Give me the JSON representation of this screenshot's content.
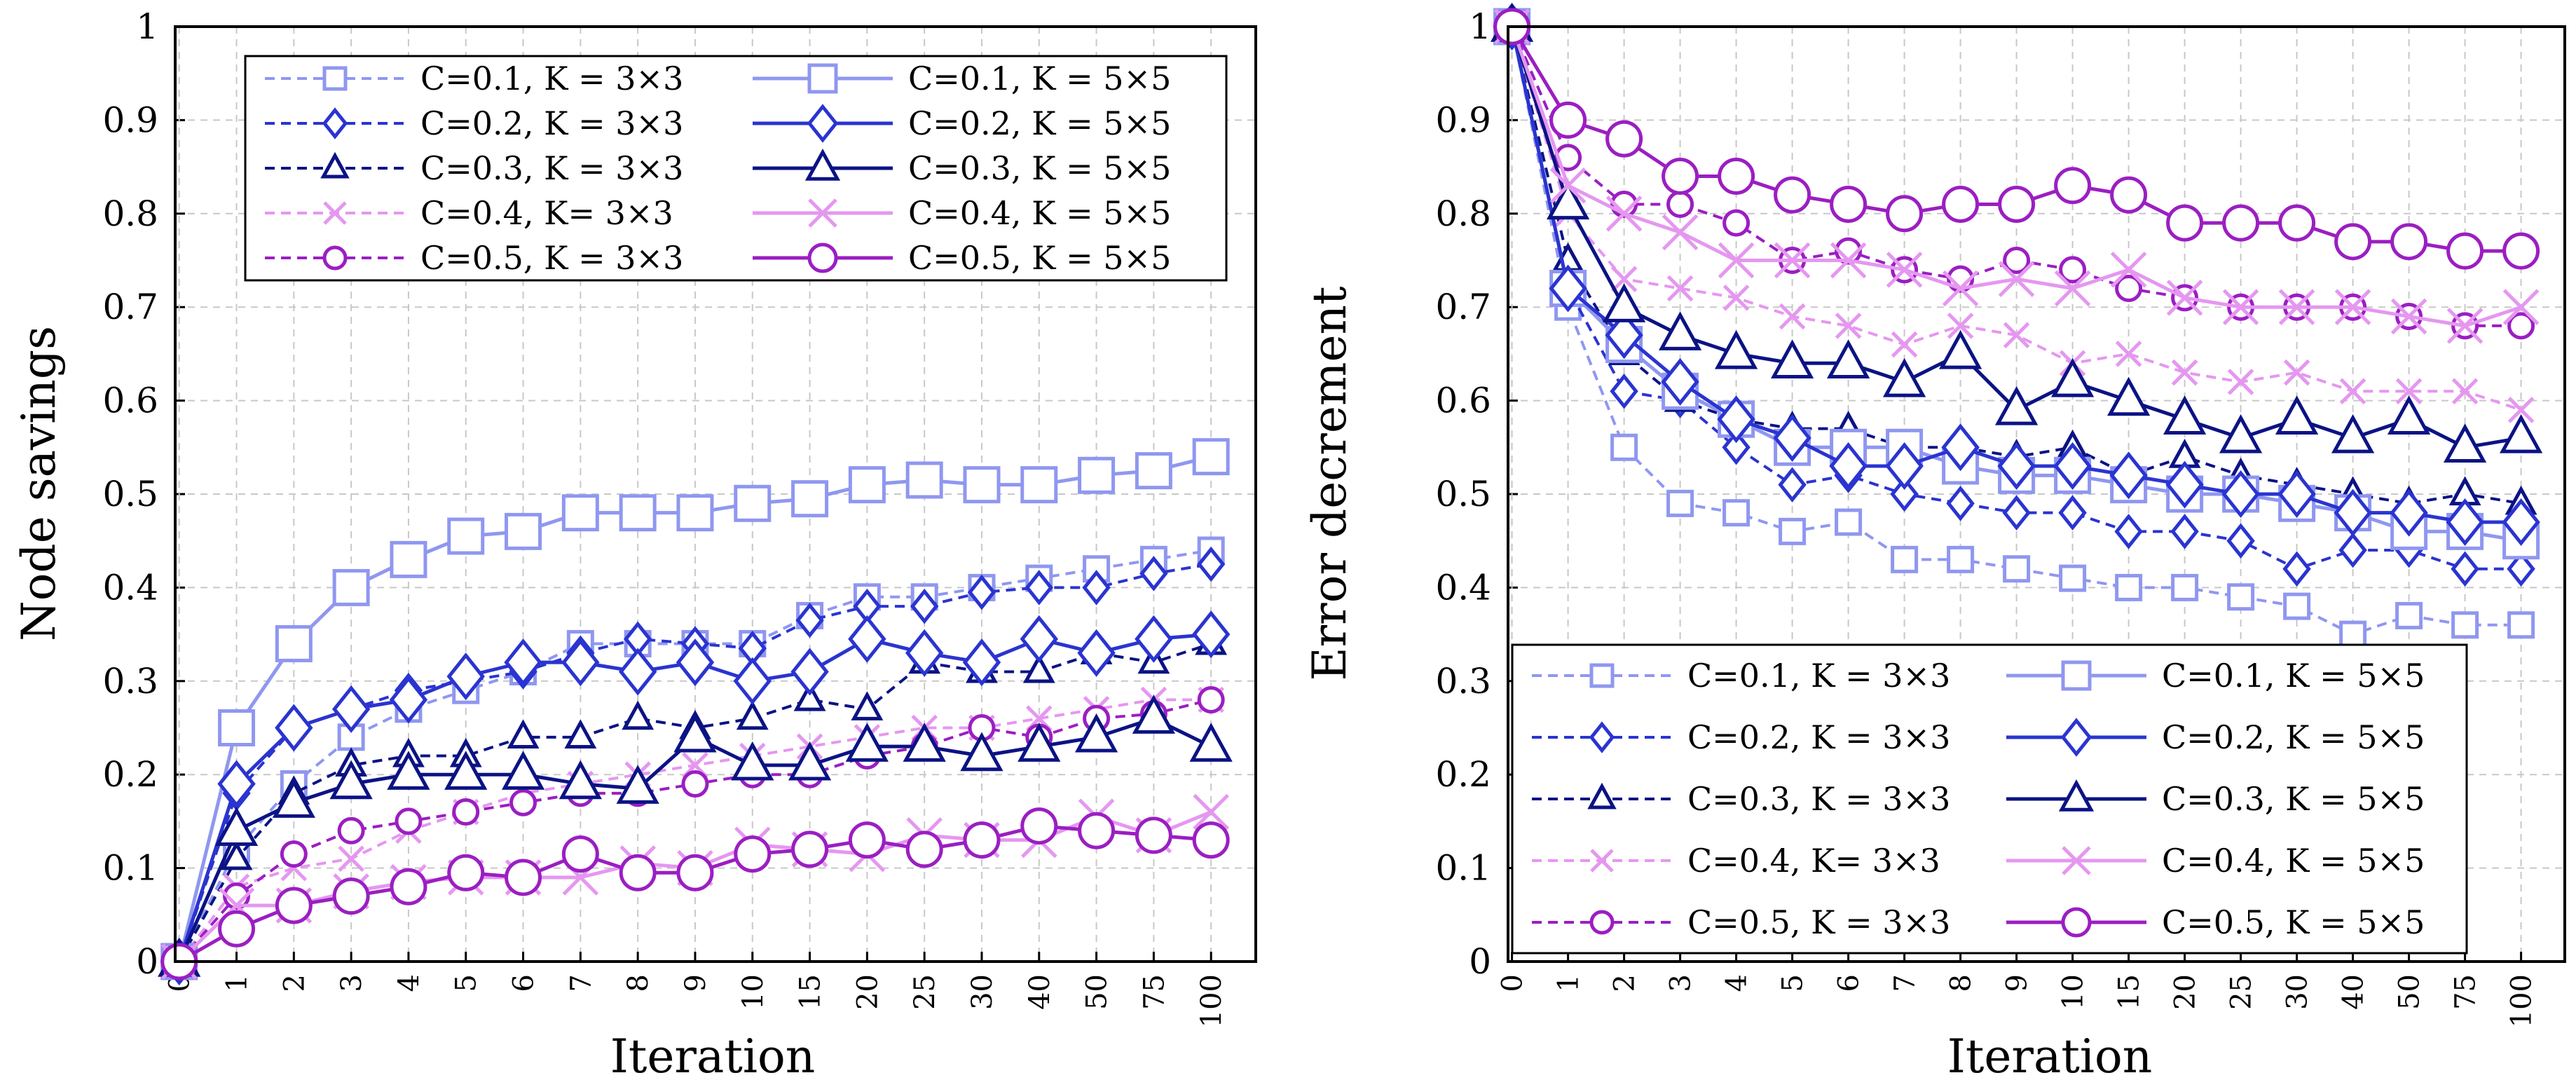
{
  "colors": {
    "c01": "#8f97f0",
    "c02": "#2a34d0",
    "c03": "#0b1384",
    "c04": "#e597f0",
    "c05": "#9b1ec2"
  },
  "chart_data": [
    {
      "type": "line",
      "ylabel": "Node savings",
      "xlabel": "Iteration",
      "categories": [
        "0",
        "1",
        "2",
        "3",
        "4",
        "5",
        "6",
        "7",
        "8",
        "9",
        "10",
        "15",
        "20",
        "25",
        "30",
        "40",
        "50",
        "75",
        "100"
      ],
      "ylim": [
        0,
        1
      ],
      "yticks": [
        "0",
        "0.1",
        "0.2",
        "0.3",
        "0.4",
        "0.5",
        "0.6",
        "0.7",
        "0.8",
        "0.9",
        "1"
      ],
      "grid": true,
      "legend_position": "top",
      "series": [
        {
          "name": "C=0.1, K = 3×3",
          "color": "c01",
          "marker": "square",
          "dash": true,
          "values": [
            0,
            0.12,
            0.19,
            0.24,
            0.27,
            0.29,
            0.31,
            0.34,
            0.34,
            0.34,
            0.34,
            0.37,
            0.39,
            0.39,
            0.4,
            0.41,
            0.42,
            0.43,
            0.44
          ]
        },
        {
          "name": "C=0.2, K = 3×3",
          "color": "c02",
          "marker": "diamond",
          "dash": true,
          "values": [
            0,
            0.18,
            0.25,
            0.27,
            0.29,
            0.3,
            0.31,
            0.33,
            0.345,
            0.34,
            0.335,
            0.365,
            0.38,
            0.38,
            0.395,
            0.4,
            0.4,
            0.415,
            0.425
          ]
        },
        {
          "name": "C=0.3, K = 3×3",
          "color": "c03",
          "marker": "triangle",
          "dash": true,
          "values": [
            0,
            0.11,
            0.18,
            0.21,
            0.22,
            0.22,
            0.24,
            0.24,
            0.26,
            0.25,
            0.26,
            0.28,
            0.27,
            0.32,
            0.31,
            0.31,
            0.33,
            0.32,
            0.34
          ]
        },
        {
          "name": "C=0.4, K= 3×3",
          "color": "c04",
          "marker": "cross",
          "dash": true,
          "values": [
            0,
            0.08,
            0.1,
            0.11,
            0.14,
            0.16,
            0.18,
            0.19,
            0.2,
            0.21,
            0.22,
            0.23,
            0.24,
            0.25,
            0.25,
            0.26,
            0.27,
            0.28,
            0.28
          ]
        },
        {
          "name": "C=0.5, K = 3×3",
          "color": "c05",
          "marker": "circle",
          "dash": true,
          "values": [
            0,
            0.07,
            0.115,
            0.14,
            0.15,
            0.16,
            0.17,
            0.18,
            0.18,
            0.19,
            0.2,
            0.2,
            0.22,
            0.23,
            0.25,
            0.24,
            0.26,
            0.265,
            0.28
          ]
        },
        {
          "name": "C=0.1, K = 5×5",
          "color": "c01",
          "marker": "square",
          "dash": false,
          "values": [
            0,
            0.25,
            0.34,
            0.4,
            0.43,
            0.455,
            0.46,
            0.48,
            0.48,
            0.48,
            0.49,
            0.495,
            0.51,
            0.515,
            0.51,
            0.51,
            0.52,
            0.525,
            0.54
          ]
        },
        {
          "name": "C=0.2, K = 5×5",
          "color": "c02",
          "marker": "diamond",
          "dash": false,
          "values": [
            0,
            0.19,
            0.25,
            0.27,
            0.28,
            0.305,
            0.32,
            0.32,
            0.31,
            0.32,
            0.3,
            0.31,
            0.345,
            0.33,
            0.32,
            0.345,
            0.33,
            0.345,
            0.35
          ]
        },
        {
          "name": "C=0.3, K = 5×5",
          "color": "c03",
          "marker": "triangle",
          "dash": false,
          "values": [
            0,
            0.14,
            0.17,
            0.19,
            0.2,
            0.2,
            0.2,
            0.19,
            0.185,
            0.24,
            0.21,
            0.21,
            0.23,
            0.23,
            0.22,
            0.23,
            0.24,
            0.26,
            0.23
          ]
        },
        {
          "name": "C=0.4, K = 5×5",
          "color": "c04",
          "marker": "cross",
          "dash": false,
          "values": [
            0,
            0.06,
            0.06,
            0.075,
            0.085,
            0.09,
            0.09,
            0.09,
            0.105,
            0.1,
            0.125,
            0.12,
            0.115,
            0.135,
            0.13,
            0.13,
            0.155,
            0.135,
            0.16
          ]
        },
        {
          "name": "C=0.5, K = 5×5",
          "color": "c05",
          "marker": "circle",
          "dash": false,
          "values": [
            0,
            0.035,
            0.06,
            0.07,
            0.08,
            0.095,
            0.09,
            0.115,
            0.095,
            0.095,
            0.115,
            0.12,
            0.13,
            0.12,
            0.13,
            0.145,
            0.14,
            0.135,
            0.13
          ]
        }
      ]
    },
    {
      "type": "line",
      "ylabel": "Error decrement",
      "xlabel": "Iteration",
      "categories": [
        "0",
        "1",
        "2",
        "3",
        "4",
        "5",
        "6",
        "7",
        "8",
        "9",
        "10",
        "15",
        "20",
        "25",
        "30",
        "40",
        "50",
        "75",
        "100"
      ],
      "ylim": [
        0,
        1
      ],
      "yticks": [
        "0",
        "0.1",
        "0.2",
        "0.3",
        "0.4",
        "0.5",
        "0.6",
        "0.7",
        "0.8",
        "0.9",
        "1"
      ],
      "grid": true,
      "legend_position": "bottom",
      "series": [
        {
          "name": "C=0.1, K = 3×3",
          "color": "c01",
          "marker": "square",
          "dash": true,
          "values": [
            1,
            0.7,
            0.55,
            0.49,
            0.48,
            0.46,
            0.47,
            0.43,
            0.43,
            0.42,
            0.41,
            0.4,
            0.4,
            0.39,
            0.38,
            0.35,
            0.37,
            0.36,
            0.36
          ]
        },
        {
          "name": "C=0.2, K = 3×3",
          "color": "c02",
          "marker": "diamond",
          "dash": true,
          "values": [
            1,
            0.72,
            0.61,
            0.6,
            0.55,
            0.51,
            0.52,
            0.5,
            0.49,
            0.48,
            0.48,
            0.46,
            0.46,
            0.45,
            0.42,
            0.44,
            0.44,
            0.42,
            0.42
          ]
        },
        {
          "name": "C=0.3, K = 3×3",
          "color": "c03",
          "marker": "triangle",
          "dash": true,
          "values": [
            1,
            0.75,
            0.65,
            0.6,
            0.58,
            0.57,
            0.57,
            0.55,
            0.55,
            0.54,
            0.55,
            0.52,
            0.54,
            0.52,
            0.51,
            0.5,
            0.49,
            0.5,
            0.49
          ]
        },
        {
          "name": "C=0.4, K= 3×3",
          "color": "c04",
          "marker": "cross",
          "dash": true,
          "values": [
            1,
            0.8,
            0.73,
            0.72,
            0.71,
            0.69,
            0.68,
            0.66,
            0.68,
            0.67,
            0.64,
            0.65,
            0.63,
            0.62,
            0.63,
            0.61,
            0.61,
            0.61,
            0.59
          ]
        },
        {
          "name": "C=0.5, K = 3×3",
          "color": "c05",
          "marker": "circle",
          "dash": true,
          "values": [
            1,
            0.86,
            0.81,
            0.81,
            0.79,
            0.75,
            0.76,
            0.74,
            0.73,
            0.75,
            0.74,
            0.72,
            0.71,
            0.7,
            0.7,
            0.7,
            0.69,
            0.68,
            0.68
          ]
        },
        {
          "name": "C=0.1, K = 5×5",
          "color": "c01",
          "marker": "square",
          "dash": false,
          "values": [
            1,
            0.72,
            0.66,
            0.61,
            0.58,
            0.55,
            0.55,
            0.55,
            0.53,
            0.52,
            0.52,
            0.51,
            0.5,
            0.5,
            0.49,
            0.48,
            0.46,
            0.46,
            0.45
          ]
        },
        {
          "name": "C=0.2, K = 5×5",
          "color": "c02",
          "marker": "diamond",
          "dash": false,
          "values": [
            1,
            0.72,
            0.67,
            0.62,
            0.58,
            0.56,
            0.53,
            0.53,
            0.55,
            0.53,
            0.53,
            0.52,
            0.51,
            0.5,
            0.5,
            0.48,
            0.48,
            0.47,
            0.47
          ]
        },
        {
          "name": "C=0.3, K = 5×5",
          "color": "c03",
          "marker": "triangle",
          "dash": false,
          "values": [
            1,
            0.81,
            0.7,
            0.67,
            0.65,
            0.64,
            0.64,
            0.62,
            0.65,
            0.59,
            0.62,
            0.6,
            0.58,
            0.56,
            0.58,
            0.56,
            0.58,
            0.55,
            0.56
          ]
        },
        {
          "name": "C=0.4, K = 5×5",
          "color": "c04",
          "marker": "cross",
          "dash": false,
          "values": [
            1,
            0.83,
            0.8,
            0.78,
            0.75,
            0.75,
            0.75,
            0.74,
            0.72,
            0.73,
            0.72,
            0.74,
            0.71,
            0.7,
            0.7,
            0.7,
            0.69,
            0.68,
            0.7
          ]
        },
        {
          "name": "C=0.5, K = 5×5",
          "color": "c05",
          "marker": "circle",
          "dash": false,
          "values": [
            1,
            0.9,
            0.88,
            0.84,
            0.84,
            0.82,
            0.81,
            0.8,
            0.81,
            0.81,
            0.83,
            0.82,
            0.79,
            0.79,
            0.79,
            0.77,
            0.77,
            0.76,
            0.76
          ]
        }
      ]
    }
  ]
}
